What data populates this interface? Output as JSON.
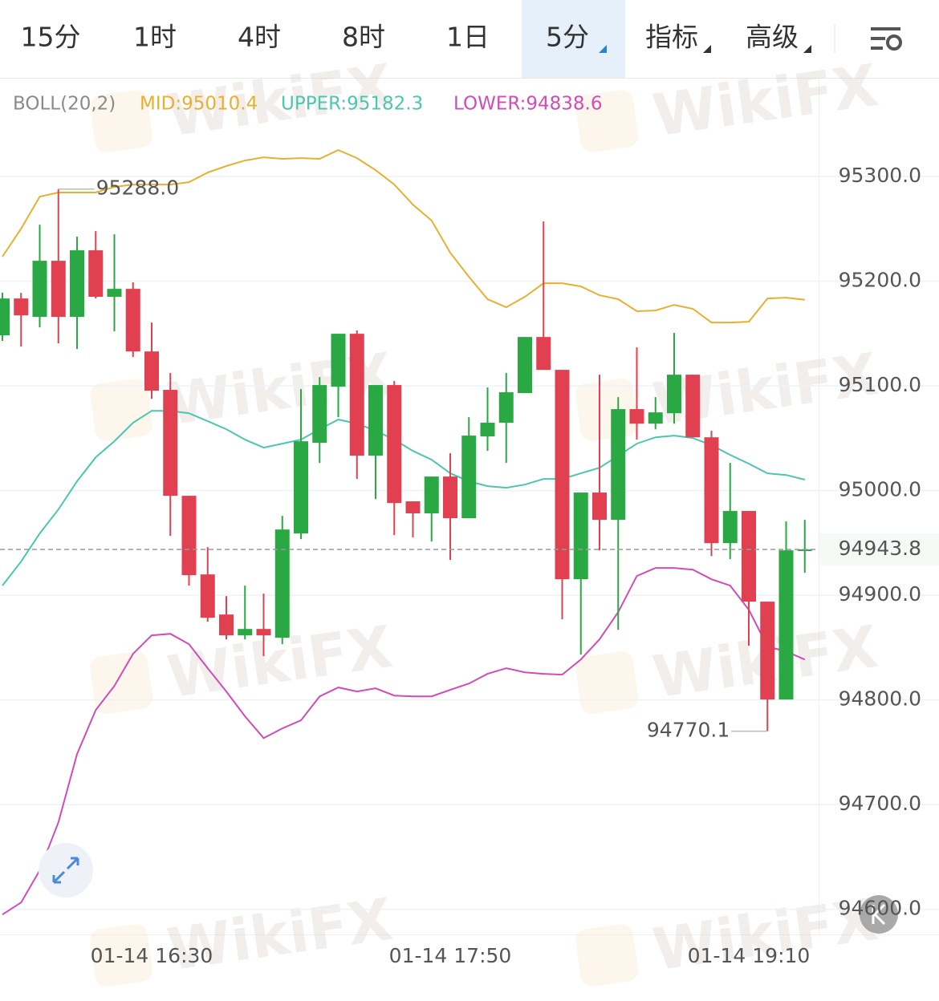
{
  "tabs": {
    "items": [
      "15分",
      "1时",
      "4时",
      "8时",
      "1日",
      "5分",
      "指标",
      "高级"
    ],
    "active": 5
  },
  "watermark": "WikiFX",
  "chart_data": {
    "type": "candlestick",
    "indicator": "BOLL(20,2)",
    "indicator_values": [
      "MID:95010.4",
      "UPPER:95182.3",
      "LOWER:94838.6"
    ],
    "up_color": "#29a843",
    "down_color": "#e0404f",
    "categories": [
      null,
      null,
      null,
      null,
      null,
      null,
      null,
      null,
      "01-14 16:30",
      null,
      null,
      null,
      null,
      null,
      null,
      null,
      null,
      null,
      null,
      null,
      null,
      null,
      null,
      null,
      "01-14 17:50",
      null,
      null,
      null,
      null,
      null,
      null,
      null,
      null,
      null,
      null,
      null,
      null,
      null,
      null,
      null,
      "01-14 19:10",
      null,
      null,
      null
    ],
    "open": [
      95148.3,
      95183.5,
      95165.9,
      95219.5,
      95165.9,
      95229.5,
      95185.1,
      95192.7,
      95132.9,
      95096.2,
      94995,
      94919.9,
      94881.6,
      94861.7,
      94867.8,
      94859.4,
      94959,
      95045.6,
      95099.2,
      95149.8,
      95033.3,
      95100.8,
      94989.7,
      94978.2,
      95013.4,
      94973.6,
      95051.7,
      95064.8,
      95093.1,
      95146.7,
      95115.3,
      94915.3,
      94998.1,
      94972,
      95077.8,
      95063.9,
      95073.9,
      95110.7,
      95050.9,
      94949.8,
      94980.5,
      94893.9,
      94800.4,
      94942.9
    ],
    "high": [
      95188.9,
      95188.9,
      95254,
      95288,
      95242.5,
      95247.9,
      95244.8,
      95198.9,
      95160.5,
      95112.3,
      94995,
      94946,
      94899.2,
      94909.2,
      94901.5,
      94975.9,
      95096.9,
      95108.4,
      95149.8,
      95152.9,
      95100.8,
      95104.6,
      94989.7,
      95013.4,
      95035.6,
      95070.1,
      95098.5,
      95112.3,
      95146.7,
      95257.1,
      95115.3,
      94998.1,
      95110.7,
      95089.3,
      95136.8,
      95089.3,
      95150.6,
      95110.7,
      95057.1,
      95026.4,
      94980.5,
      94893.9,
      94970.5,
      94972
    ],
    "low": [
      95142.9,
      95137.5,
      95155.9,
      95140.6,
      95135.2,
      95183.5,
      95152.1,
      95127.6,
      95087.7,
      94956.7,
      94909.2,
      94874.7,
      94857.9,
      94857.9,
      94841.8,
      94853.3,
      94953.6,
      95026.4,
      95070.1,
      95011.1,
      94991.9,
      94957.5,
      94955.2,
      94951.3,
      94933.7,
      94973.6,
      95037.9,
      95026.4,
      95093.1,
      95115.3,
      94877,
      94843.3,
      94942.9,
      94867,
      95048.7,
      95058.6,
      95063.9,
      95050.9,
      94937.5,
      94934.5,
      94851.7,
      94770.1,
      94800.4,
      94921.5
    ],
    "close": [
      95183.5,
      95167.4,
      95219.5,
      95165.9,
      95229.5,
      95185.1,
      95192.7,
      95132.9,
      95095.4,
      94995,
      94919.2,
      94878.5,
      94861.7,
      94867.8,
      94861.7,
      94962.8,
      95047.1,
      95100.8,
      95149.8,
      95033.3,
      95100.8,
      94988.1,
      94978.2,
      95013.4,
      94973.6,
      95052.5,
      95064.8,
      95093.9,
      95146.7,
      95115.3,
      94915.3,
      94998.1,
      94972,
      95077.8,
      95063.9,
      95074.7,
      95110.7,
      95050.9,
      94949.8,
      94980.5,
      94893.9,
      94800.4,
      94942.9,
      94943.8
    ],
    "bands": [
      {
        "name": "UPPER",
        "color": "#e8b030",
        "values": [
          95223.4,
          95250.2,
          95280.8,
          95284.7,
          95284.7,
          95284.7,
          95290,
          95292.3,
          95292.3,
          95292.3,
          95294.6,
          95303.8,
          95310,
          95315.3,
          95318.4,
          95316.9,
          95317.6,
          95316.9,
          95325.3,
          95317.6,
          95306.1,
          95292.3,
          95273.2,
          95257.9,
          95227.2,
          95204.2,
          95182.8,
          95175.1,
          95185.1,
          95198.1,
          95198.1,
          95195,
          95186.6,
          95182.8,
          95171.3,
          95172,
          95177.4,
          95173.6,
          95160.5,
          95160.5,
          95161.3,
          95183.5,
          95184.3,
          95182.3
        ]
      },
      {
        "name": "MID",
        "color": "#4cc6ae",
        "values": [
          94909.2,
          94932.2,
          94959,
          94982,
          95008.8,
          95031.8,
          95047.1,
          95064.8,
          95076.2,
          95076.2,
          95073.9,
          95066.3,
          95058.6,
          95048.7,
          95041,
          95044.8,
          95048.7,
          95058.6,
          95067.8,
          95064,
          95057.1,
          95048.7,
          95037.9,
          95029.5,
          95016.5,
          95008.8,
          95004.2,
          95002.7,
          95005.7,
          95011.1,
          95011.1,
          95016.5,
          95021.8,
          95033.3,
          95044.8,
          95050.9,
          95052.5,
          95050.2,
          95043.3,
          95034.1,
          95025.7,
          95016.5,
          95014.9,
          95010.4
        ]
      },
      {
        "name": "LOWER",
        "color": "#d04cb8",
        "values": [
          94595,
          94606.5,
          94637.2,
          94683.1,
          94748.3,
          94790.4,
          94813.4,
          94844.1,
          94861.7,
          94863.2,
          94853.3,
          94830.3,
          94808.1,
          94784.3,
          94763.6,
          94772.8,
          94780.5,
          94803.4,
          94811.9,
          94808.1,
          94811.1,
          94804.2,
          94803.4,
          94803.4,
          94809.6,
          94815.7,
          94824.9,
          94830.3,
          94826.4,
          94824.9,
          94824.2,
          94838.7,
          94857.9,
          94883.9,
          94918.4,
          94926.1,
          94926.1,
          94924.5,
          94915.3,
          94909.2,
          94886.2,
          94851,
          94846.4,
          94838.6
        ]
      }
    ],
    "annotations": [
      {
        "value": 95288,
        "label": "95288.0",
        "index": 3
      },
      {
        "value": 94770.1,
        "label": "94770.1",
        "index": 41
      }
    ],
    "last_price": {
      "value": 94943.8,
      "label": "94943.8",
      "color": "#29a843"
    },
    "ylim": [
      94576,
      95392
    ],
    "yticks": [
      {
        "value": 95300,
        "label": "95300.0"
      },
      {
        "value": 95200,
        "label": "95200.0"
      },
      {
        "value": 95100,
        "label": "95100.0"
      },
      {
        "value": 95000,
        "label": "95000.0"
      },
      {
        "value": 94900,
        "label": "94900.0"
      },
      {
        "value": 94800,
        "label": "94800.0"
      },
      {
        "value": 94700,
        "label": "94700.0"
      },
      {
        "value": 94600,
        "label": "94600.0"
      }
    ],
    "grid": true
  }
}
